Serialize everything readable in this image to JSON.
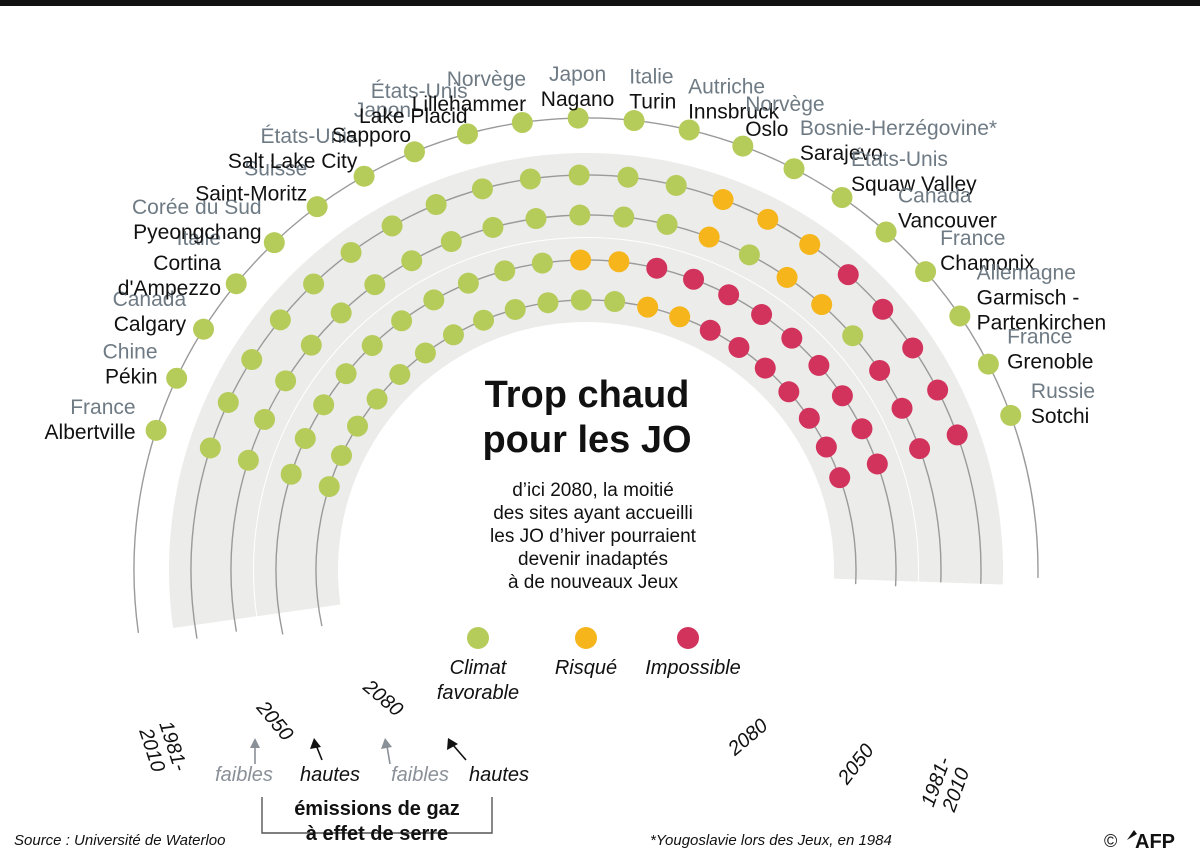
{
  "title_lines": [
    "Trop chaud",
    "pour les JO"
  ],
  "description_lines": [
    "d’ici 2080, la moitié",
    "des sites ayant accueilli",
    "les JO d’hiver pourraient",
    "devenir inadaptés",
    "à de nouveaux Jeux"
  ],
  "legend": [
    {
      "key": "favorable",
      "label_lines": [
        "Climat",
        "favorable"
      ],
      "color": "#b5cc5a"
    },
    {
      "key": "risque",
      "label_lines": [
        "Risqué"
      ],
      "color": "#f5b51b"
    },
    {
      "key": "impossible",
      "label_lines": [
        "Impossible"
      ],
      "color": "#d2335c"
    }
  ],
  "status_colors": {
    "F": "#b5cc5a",
    "R": "#f5b51b",
    "I": "#d2335c"
  },
  "ring_labels": {
    "r1981": [
      "1981-",
      "2010"
    ],
    "r2050": "2050",
    "r2080": "2080"
  },
  "emissions": {
    "low": "faibles",
    "high": "hautes",
    "title_lines": [
      "émissions de gaz",
      "à effet de serre"
    ]
  },
  "sites": [
    {
      "country": "France",
      "city": "Albertville"
    },
    {
      "country": "Chine",
      "city": "Pékin"
    },
    {
      "country": "Canada",
      "city": "Calgary"
    },
    {
      "country": "Italie",
      "city": "Cortina d'Ampezzo",
      "city_lines": [
        "Cortina",
        "d'Ampezzo"
      ]
    },
    {
      "country": "Corée du Sud",
      "city": "Pyeongchang"
    },
    {
      "country": "Suisse",
      "city": "Saint-Moritz"
    },
    {
      "country": "États-Unis",
      "city": "Salt Lake City"
    },
    {
      "country": "Japon",
      "city": "Sapporo"
    },
    {
      "country": "États-Unis",
      "city": "Lake Placid"
    },
    {
      "country": "Norvège",
      "city": "Lillehammer"
    },
    {
      "country": "Japon",
      "city": "Nagano"
    },
    {
      "country": "Italie",
      "city": "Turin"
    },
    {
      "country": "Autriche",
      "city": "Innsbruck"
    },
    {
      "country": "Norvège",
      "city": "Oslo"
    },
    {
      "country": "Bosnie-Herzégovine*",
      "city": "Sarajevo"
    },
    {
      "country": "États-Unis",
      "city": "Squaw Valley"
    },
    {
      "country": "Canada",
      "city": "Vancouver"
    },
    {
      "country": "France",
      "city": "Chamonix"
    },
    {
      "country": "Allemagne",
      "city": "Garmisch - Partenkirchen",
      "city_lines": [
        "Garmisch -",
        "Partenkirchen"
      ]
    },
    {
      "country": "France",
      "city": "Grenoble"
    },
    {
      "country": "Russie",
      "city": "Sotchi"
    }
  ],
  "rings": {
    "r1981_2010": "FFFFFFFFFFFFFFFFFFFFF",
    "r2050_low": "FFFFFFFFFFFFFRFRRFIII",
    "r2050_high": "FFFFFFFFFFFFFRRRIIIII",
    "r2080_low": "FFFFFFFFFFFFRRIIIIIII",
    "r2080_high": "FFFFFFFFFFRRIIIIIIIII"
  },
  "source": "Source : Université de Waterloo",
  "footnote": "*Yougoslavie lors des Jeux, en 1984",
  "copyright": "©",
  "logo": "AFP"
}
